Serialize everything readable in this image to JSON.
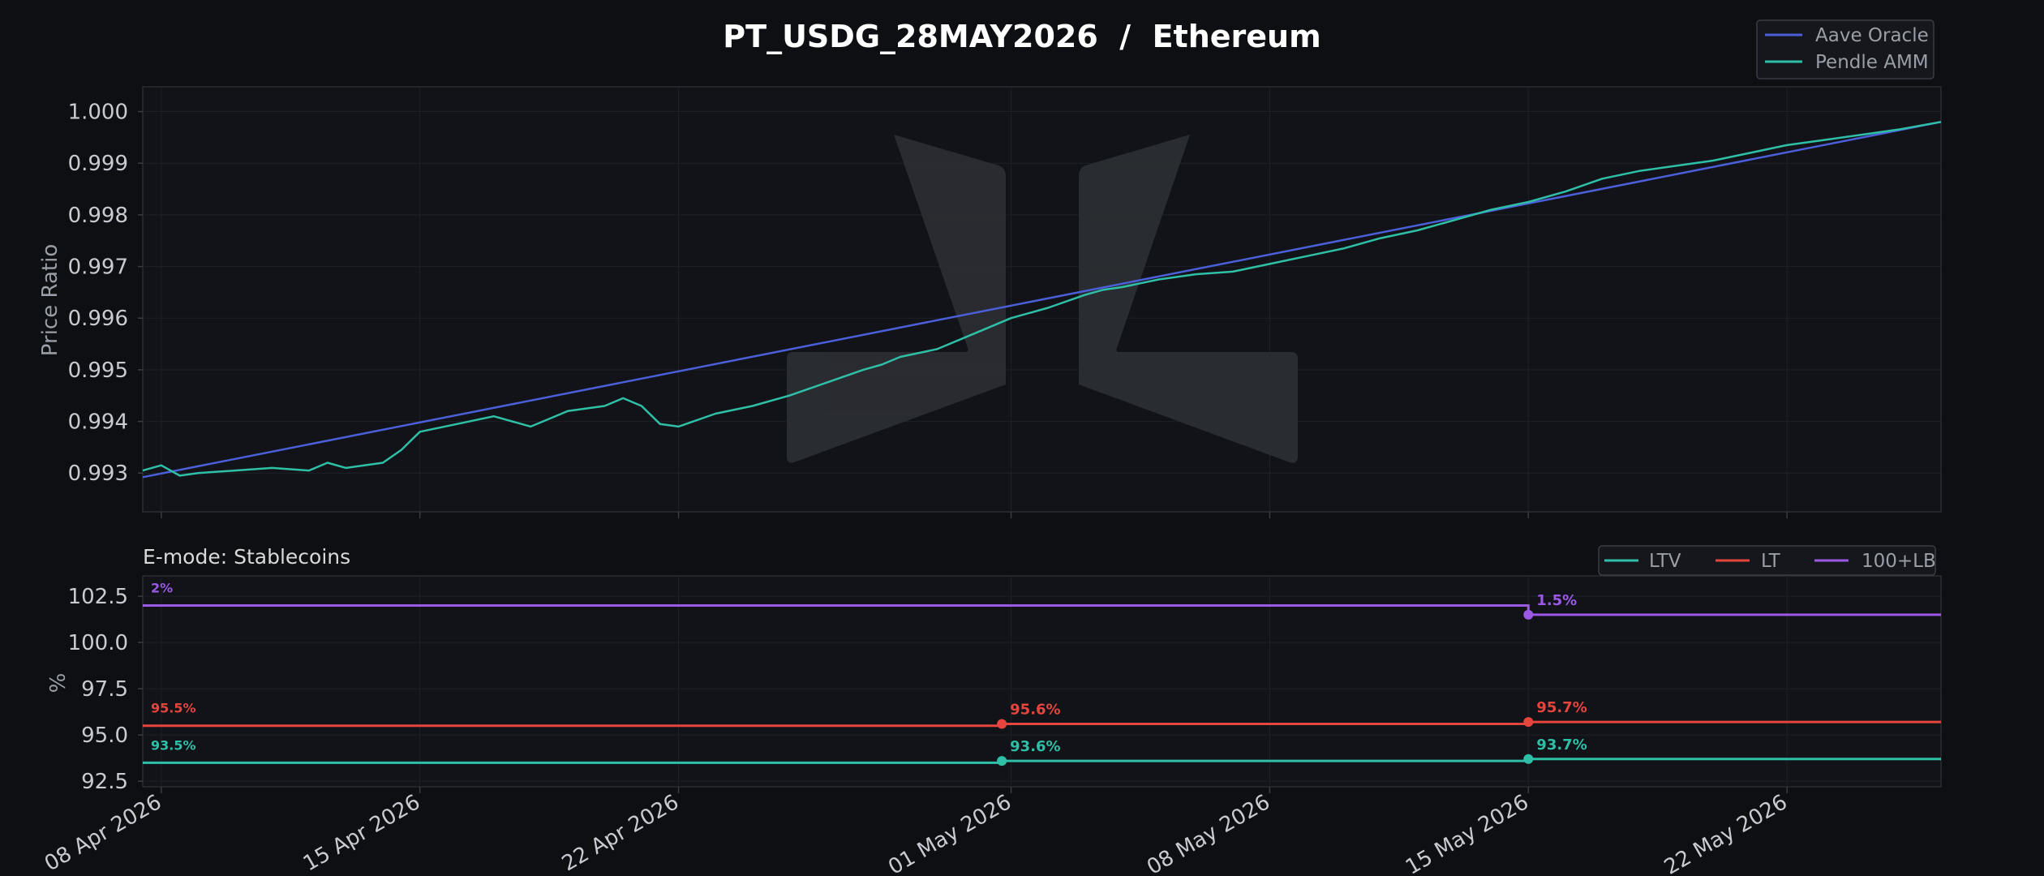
{
  "colors": {
    "background": "#0d0f13",
    "panel": "#111318",
    "grid": "#1e2127",
    "axis": "#3a3d44",
    "text": "#c8cbd1",
    "title": "#ffffff",
    "aave": "#4b5fd8",
    "pendle": "#2fbfa7",
    "ltv": "#2fbfa7",
    "lt": "#e5453d",
    "lb": "#9b59e6",
    "watermark": "#2b2d32"
  },
  "watermark_icon": "logo-watermark",
  "chart_data": [
    {
      "type": "line",
      "title": "PT_USDG_28MAY2026  /  Ethereum",
      "ylabel": "Price Ratio",
      "xlabel": "",
      "x_ticks": [
        "08 Apr 2026",
        "15 Apr 2026",
        "22 Apr 2026",
        "01 May 2026",
        "08 May 2026",
        "15 May 2026",
        "22 May 2026"
      ],
      "x_tick_dates": [
        "2026-04-08",
        "2026-04-15",
        "2026-04-22",
        "2026-05-01",
        "2026-05-08",
        "2026-05-15",
        "2026-05-22"
      ],
      "xlim": [
        "2026-04-07T12:00",
        "2026-05-26T04:00"
      ],
      "ylim": [
        0.99225,
        1.00048
      ],
      "y_ticks": [
        "0.993",
        "0.994",
        "0.995",
        "0.996",
        "0.997",
        "0.998",
        "0.999",
        "1.000"
      ],
      "grid": true,
      "legend_position": "top-right",
      "series": [
        {
          "name": "Aave Oracle",
          "x": [
            "2026-04-07T12:00",
            "2026-05-26T04:00"
          ],
          "y": [
            0.99292,
            0.9998
          ]
        },
        {
          "name": "Pendle AMM",
          "x": [
            "2026-04-07T12:00",
            "2026-04-08T00:00",
            "2026-04-08T12:00",
            "2026-04-09T00:00",
            "2026-04-10T00:00",
            "2026-04-11T00:00",
            "2026-04-12T00:00",
            "2026-04-12T12:00",
            "2026-04-13T00:00",
            "2026-04-14T00:00",
            "2026-04-14T12:00",
            "2026-04-15T00:00",
            "2026-04-16T00:00",
            "2026-04-17T00:00",
            "2026-04-18T00:00",
            "2026-04-18T12:00",
            "2026-04-19T00:00",
            "2026-04-20T00:00",
            "2026-04-20T12:00",
            "2026-04-21T00:00",
            "2026-04-21T12:00",
            "2026-04-22T00:00",
            "2026-04-23T00:00",
            "2026-04-24T00:00",
            "2026-04-25T00:00",
            "2026-04-26T00:00",
            "2026-04-27T00:00",
            "2026-04-27T12:00",
            "2026-04-28T00:00",
            "2026-04-29T00:00",
            "2026-04-30T00:00",
            "2026-05-01T00:00",
            "2026-05-02T00:00",
            "2026-05-03T00:00",
            "2026-05-03T12:00",
            "2026-05-04T00:00",
            "2026-05-05T00:00",
            "2026-05-06T00:00",
            "2026-05-07T00:00",
            "2026-05-08T00:00",
            "2026-05-09T00:00",
            "2026-05-10T00:00",
            "2026-05-11T00:00",
            "2026-05-12T00:00",
            "2026-05-13T00:00",
            "2026-05-14T00:00",
            "2026-05-15T00:00",
            "2026-05-16T00:00",
            "2026-05-17T00:00",
            "2026-05-18T00:00",
            "2026-05-19T00:00",
            "2026-05-20T00:00",
            "2026-05-21T00:00",
            "2026-05-22T00:00",
            "2026-05-23T00:00",
            "2026-05-24T00:00",
            "2026-05-25T00:00",
            "2026-05-26T04:00"
          ],
          "y": [
            0.99305,
            0.99315,
            0.99295,
            0.993,
            0.99305,
            0.9931,
            0.99305,
            0.9932,
            0.9931,
            0.9932,
            0.99345,
            0.9938,
            0.99395,
            0.9941,
            0.9939,
            0.99405,
            0.9942,
            0.9943,
            0.99445,
            0.9943,
            0.99395,
            0.9939,
            0.99415,
            0.9943,
            0.9945,
            0.99475,
            0.995,
            0.9951,
            0.99525,
            0.9954,
            0.9957,
            0.996,
            0.9962,
            0.99645,
            0.99655,
            0.9966,
            0.99675,
            0.99685,
            0.9969,
            0.99705,
            0.9972,
            0.99735,
            0.99755,
            0.9977,
            0.9979,
            0.9981,
            0.99825,
            0.99845,
            0.9987,
            0.99885,
            0.99895,
            0.99905,
            0.9992,
            0.99935,
            0.99945,
            0.99955,
            0.99965,
            0.9998
          ]
        }
      ]
    },
    {
      "type": "line",
      "title": "E-mode: Stablecoins",
      "ylabel": "%",
      "xlabel": "",
      "x_ticks": [
        "08 Apr 2026",
        "15 Apr 2026",
        "22 Apr 2026",
        "01 May 2026",
        "08 May 2026",
        "15 May 2026",
        "22 May 2026"
      ],
      "x_tick_dates": [
        "2026-04-08",
        "2026-04-15",
        "2026-04-22",
        "2026-05-01",
        "2026-05-08",
        "2026-05-15",
        "2026-05-22"
      ],
      "xlim": [
        "2026-04-07T12:00",
        "2026-05-26T04:00"
      ],
      "ylim": [
        92.2,
        103.6
      ],
      "y_ticks": [
        "92.5",
        "95.0",
        "97.5",
        "100.0",
        "102.5"
      ],
      "grid": true,
      "legend_position": "top-right",
      "series": [
        {
          "name": "LTV",
          "x": [
            "2026-04-07T12:00",
            "2026-04-30T18:00",
            "2026-05-15T00:00",
            "2026-05-26T04:00"
          ],
          "y": [
            93.5,
            93.6,
            93.7,
            93.7
          ],
          "change_points": [
            {
              "x": "2026-04-30T18:00",
              "y": 93.6,
              "label": "93.6%"
            },
            {
              "x": "2026-05-15T00:00",
              "y": 93.7,
              "label": "93.7%"
            }
          ],
          "start_label": "93.5%"
        },
        {
          "name": "LT",
          "x": [
            "2026-04-07T12:00",
            "2026-04-30T18:00",
            "2026-05-15T00:00",
            "2026-05-26T04:00"
          ],
          "y": [
            95.5,
            95.6,
            95.7,
            95.7
          ],
          "change_points": [
            {
              "x": "2026-04-30T18:00",
              "y": 95.6,
              "label": "95.6%"
            },
            {
              "x": "2026-05-15T00:00",
              "y": 95.7,
              "label": "95.7%"
            }
          ],
          "start_label": "95.5%"
        },
        {
          "name": "100+LB",
          "x": [
            "2026-04-07T12:00",
            "2026-05-15T00:00",
            "2026-05-15T00:00",
            "2026-05-26T04:00"
          ],
          "y": [
            102.0,
            102.0,
            101.5,
            101.5
          ],
          "change_points": [
            {
              "x": "2026-05-15T00:00",
              "y": 101.5,
              "label": "1.5%"
            }
          ],
          "start_label": "2%"
        }
      ]
    }
  ]
}
